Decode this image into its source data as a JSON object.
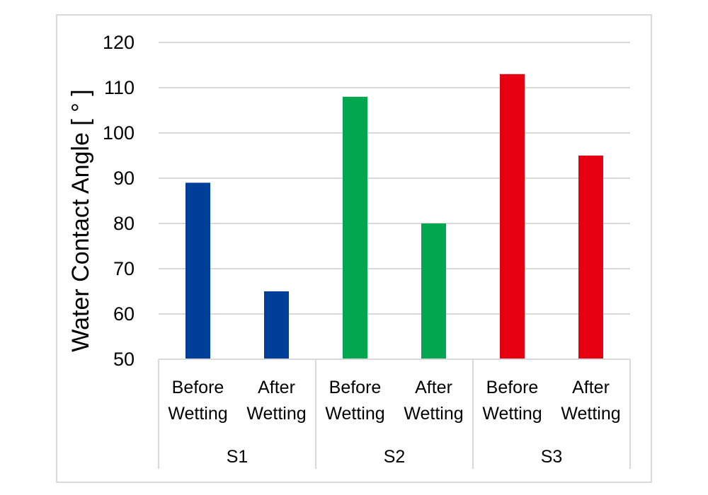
{
  "chart_data": {
    "type": "bar",
    "ylabel": "Water Contact Angle [ ° ]",
    "ylim": [
      50,
      120
    ],
    "yticks": [
      "50",
      "60",
      "70",
      "80",
      "90",
      "100",
      "110",
      "120"
    ],
    "grid": true,
    "groups": [
      {
        "name": "S1",
        "color": "#003f98",
        "bars": [
          {
            "label_lines": [
              "Before",
              "Wetting"
            ],
            "value": 89
          },
          {
            "label_lines": [
              "After",
              "Wetting"
            ],
            "value": 65
          }
        ]
      },
      {
        "name": "S2",
        "color": "#00a650",
        "bars": [
          {
            "label_lines": [
              "Before",
              "Wetting"
            ],
            "value": 108
          },
          {
            "label_lines": [
              "After",
              "Wetting"
            ],
            "value": 80
          }
        ]
      },
      {
        "name": "S3",
        "color": "#e60012",
        "bars": [
          {
            "label_lines": [
              "Before",
              "Wetting"
            ],
            "value": 113
          },
          {
            "label_lines": [
              "After",
              "Wetting"
            ],
            "value": 95
          }
        ]
      }
    ]
  }
}
